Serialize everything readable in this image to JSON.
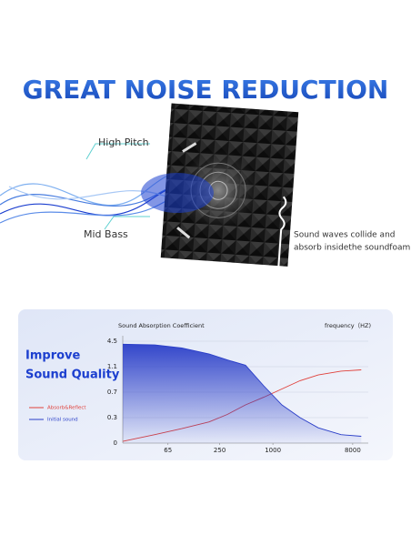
{
  "header": {
    "title": "GREAT NOISE REDUCTION"
  },
  "callouts": {
    "high_pitch": "High Pitch",
    "mid_bass": "Mid Bass",
    "note": [
      "Sound waves collide and",
      "absorb insidethe soundfoam."
    ]
  },
  "panel": {
    "headline": [
      "Improve",
      "Sound Quality"
    ]
  },
  "chart_data": {
    "type": "line",
    "ylabel": "Sound Absorption Coefficient",
    "xlabel": "frequency（HZ)",
    "x": [
      20,
      46,
      93,
      190,
      305,
      490,
      787,
      1265,
      2030,
      3260,
      5890,
      10000
    ],
    "series": [
      {
        "name": "Absorb&Reflect",
        "color": "#e0403a",
        "values": [
          0.02,
          0.1,
          0.17,
          0.25,
          0.35,
          0.5,
          0.62,
          0.75,
          0.88,
          0.97,
          1.03,
          1.05
        ]
      },
      {
        "name": "Initial sound",
        "color": "#2a3ec8",
        "values": [
          4.1,
          4.0,
          3.6,
          2.8,
          2.0,
          1.3,
          0.8,
          0.5,
          0.3,
          0.18,
          0.1,
          0.08
        ]
      }
    ],
    "xscale": "log",
    "xlim": [
      20,
      12000
    ],
    "xticks": [
      65,
      250,
      1000,
      8000
    ],
    "yscale": "piecewise",
    "ylim": [
      0,
      4.5
    ],
    "yticks": [
      0,
      0.3,
      0.7,
      1.1,
      4.5
    ],
    "grid": true,
    "legend": "left"
  }
}
